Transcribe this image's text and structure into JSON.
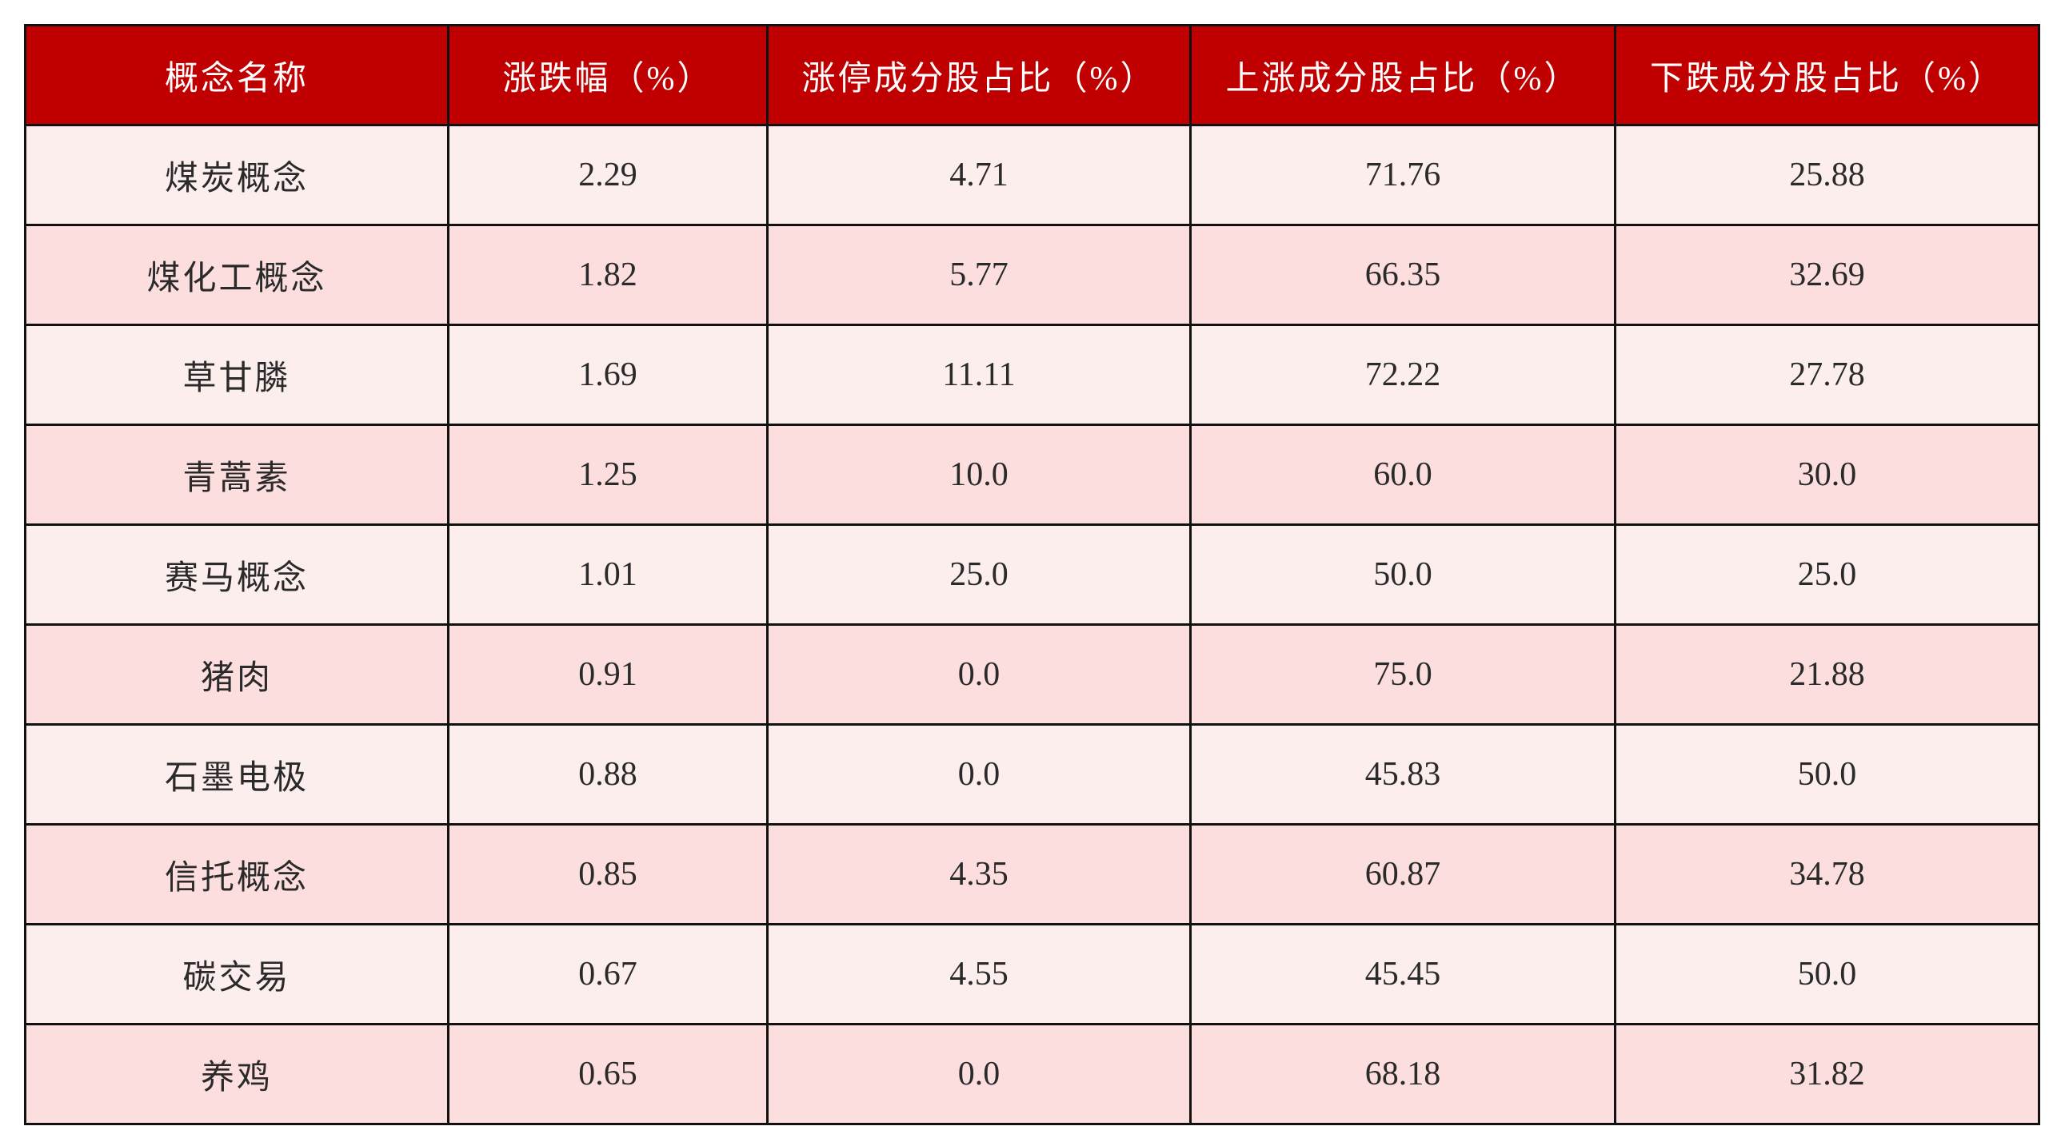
{
  "colors": {
    "header_bg": "#C00000",
    "header_text": "#FFFFFF",
    "row_odd": "#FDEEEE",
    "row_even": "#FCDEDF",
    "border": "#111111"
  },
  "table": {
    "headers": [
      "概念名称",
      "涨跌幅（%）",
      "涨停成分股占比（%）",
      "上涨成分股占比（%）",
      "下跌成分股占比（%）"
    ],
    "rows": [
      [
        "煤炭概念",
        "2.29",
        "4.71",
        "71.76",
        "25.88"
      ],
      [
        "煤化工概念",
        "1.82",
        "5.77",
        "66.35",
        "32.69"
      ],
      [
        "草甘膦",
        "1.69",
        "11.11",
        "72.22",
        "27.78"
      ],
      [
        "青蒿素",
        "1.25",
        "10.0",
        "60.0",
        "30.0"
      ],
      [
        "赛马概念",
        "1.01",
        "25.0",
        "50.0",
        "25.0"
      ],
      [
        "猪肉",
        "0.91",
        "0.0",
        "75.0",
        "21.88"
      ],
      [
        "石墨电极",
        "0.88",
        "0.0",
        "45.83",
        "50.0"
      ],
      [
        "信托概念",
        "0.85",
        "4.35",
        "60.87",
        "34.78"
      ],
      [
        "碳交易",
        "0.67",
        "4.55",
        "45.45",
        "50.0"
      ],
      [
        "养鸡",
        "0.65",
        "0.0",
        "68.18",
        "31.82"
      ]
    ]
  }
}
